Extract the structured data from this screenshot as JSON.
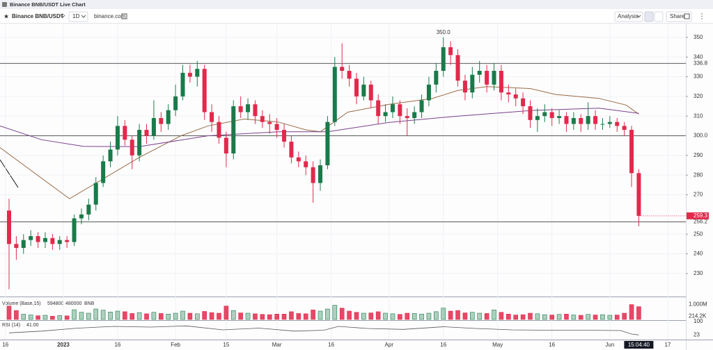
{
  "window_title": "Binance BNB/USDT Live Chart",
  "toolbar": {
    "symbol": "Binance BNB/USDT",
    "interval": "1D",
    "source": "binance.com",
    "analysis": "Analysis",
    "share": "Share"
  },
  "chart_data": {
    "type": "candlestick",
    "x": [
      1,
      3,
      5,
      7,
      9,
      11,
      13,
      15,
      17,
      19,
      21,
      23,
      25,
      27,
      29,
      31,
      33,
      35,
      37,
      39,
      41,
      43,
      45,
      47,
      49,
      51,
      53,
      55,
      57,
      59,
      61,
      63,
      65,
      67,
      69,
      71,
      73,
      75,
      77,
      79,
      81,
      83,
      85,
      87,
      89,
      91,
      93,
      95,
      97,
      99,
      101,
      103,
      105,
      107,
      109,
      111,
      113,
      115,
      117,
      119,
      121,
      123,
      125,
      127,
      129,
      131,
      133,
      135,
      137,
      139,
      141,
      143,
      145,
      147,
      149,
      151,
      153,
      155,
      157,
      159,
      161,
      163,
      165,
      167,
      169,
      171,
      173,
      175
    ],
    "open": [
      262,
      245,
      243,
      247,
      249,
      246,
      248,
      245,
      247,
      246,
      258,
      260,
      265,
      276,
      287,
      293,
      305,
      298,
      290,
      303,
      300,
      309,
      306,
      313,
      320,
      332,
      330,
      334,
      312,
      307,
      299,
      291,
      315,
      312,
      316,
      310,
      307,
      306,
      303,
      297,
      289,
      287,
      284,
      276,
      285,
      307,
      335,
      333,
      329,
      320,
      326,
      318,
      310,
      312,
      316,
      310,
      309,
      312,
      318,
      326,
      333,
      345,
      341,
      328,
      322,
      331,
      333,
      326,
      333,
      322,
      321,
      319,
      315,
      308,
      310,
      312,
      309,
      310,
      306,
      309,
      306,
      310,
      306,
      306,
      307,
      305,
      303,
      281
    ],
    "high": [
      268,
      249,
      250,
      252,
      251,
      251,
      250,
      249,
      249,
      260,
      263,
      268,
      279,
      290,
      297,
      310,
      308,
      300,
      306,
      306,
      318,
      312,
      316,
      326,
      336,
      336,
      338,
      336,
      316,
      310,
      302,
      318,
      320,
      319,
      318,
      313,
      311,
      309,
      306,
      300,
      292,
      290,
      287,
      288,
      310,
      340,
      347,
      336,
      332,
      330,
      328,
      321,
      316,
      320,
      318,
      314,
      315,
      321,
      330,
      337,
      350,
      348,
      344,
      331,
      335,
      338,
      336,
      337,
      336,
      326,
      324,
      322,
      318,
      314,
      316,
      314,
      313,
      312,
      312,
      311,
      317,
      313,
      309,
      310,
      309,
      307,
      305,
      283
    ],
    "low": [
      222,
      237,
      240,
      244,
      243,
      243,
      242,
      242,
      243,
      244,
      255,
      257,
      262,
      274,
      284,
      290,
      295,
      283,
      287,
      296,
      298,
      302,
      303,
      310,
      318,
      327,
      325,
      308,
      302,
      296,
      284,
      288,
      309,
      308,
      306,
      304,
      301,
      299,
      294,
      286,
      284,
      280,
      266,
      272,
      283,
      305,
      329,
      325,
      316,
      318,
      314,
      306,
      307,
      309,
      306,
      300,
      306,
      309,
      315,
      322,
      330,
      336,
      325,
      318,
      319,
      327,
      322,
      323,
      318,
      317,
      315,
      311,
      304,
      302,
      307,
      305,
      306,
      302,
      303,
      302,
      303,
      303,
      303,
      304,
      302,
      300,
      274,
      254
    ],
    "close": [
      245,
      243,
      247,
      249,
      246,
      248,
      245,
      247,
      246,
      258,
      260,
      265,
      276,
      287,
      293,
      305,
      298,
      290,
      303,
      300,
      309,
      306,
      313,
      320,
      332,
      330,
      334,
      312,
      307,
      299,
      291,
      315,
      312,
      316,
      310,
      307,
      306,
      303,
      297,
      289,
      287,
      284,
      276,
      285,
      307,
      335,
      333,
      329,
      320,
      326,
      318,
      310,
      312,
      316,
      310,
      309,
      312,
      318,
      326,
      333,
      345,
      341,
      328,
      322,
      331,
      333,
      326,
      333,
      322,
      321,
      319,
      315,
      308,
      310,
      312,
      309,
      310,
      306,
      309,
      306,
      310,
      306,
      306,
      307,
      305,
      303,
      281,
      259.3
    ],
    "colors": {
      "up": "#1b7a4a",
      "down": "#e2294c"
    },
    "xlim": [
      -1.5,
      188
    ],
    "xticks": [
      {
        "value": 0,
        "label": "16"
      },
      {
        "value": 16,
        "label": "2023"
      },
      {
        "value": 31,
        "label": "16"
      },
      {
        "value": 47,
        "label": "Feb"
      },
      {
        "value": 61,
        "label": "15"
      },
      {
        "value": 75,
        "label": "Mar"
      },
      {
        "value": 90,
        "label": "16"
      },
      {
        "value": 106,
        "label": "Apr"
      },
      {
        "value": 121,
        "label": "16"
      },
      {
        "value": 136,
        "label": "May"
      },
      {
        "value": 151,
        "label": "16"
      },
      {
        "value": 167,
        "label": "Jun"
      },
      {
        "value": 183,
        "label": "17"
      }
    ],
    "ylim": [
      219,
      357
    ],
    "yticks": [
      230,
      240,
      250,
      270,
      280,
      290,
      310,
      320,
      330,
      340,
      350
    ],
    "hlines": [
      336.8,
      {
        "value": 300,
        "label": "300.0"
      },
      256.2
    ],
    "max_label": {
      "value": 350,
      "label": "350.0"
    },
    "last_price": 259.3,
    "time_label": "15:04:40",
    "ma": [
      {
        "color": "#9a6a45",
        "x": [
          -1.5,
          17.7,
          37,
          48.5,
          56,
          66,
          75.4,
          83,
          87,
          94.6,
          106,
          118,
          125,
          133,
          145,
          152,
          164,
          171.5,
          175
        ],
        "values": [
          294,
          268,
          289,
          300,
          305,
          308.5,
          307,
          303,
          302,
          312,
          316,
          319,
          323,
          325,
          324,
          321,
          319,
          315.6,
          311
        ]
      },
      {
        "color": "#7a3f8a",
        "x": [
          -1.5,
          10,
          21.5,
          37,
          56,
          75.4,
          89,
          106,
          125,
          145,
          164,
          175
        ],
        "values": [
          305,
          298,
          294.6,
          294.5,
          300,
          302,
          302,
          306.8,
          310,
          312.8,
          314,
          311.4
        ]
      }
    ],
    "volume": {
      "label": "Volume (Base,15)",
      "readout": [
        594800,
        480000
      ],
      "unit": "BNB",
      "values": [
        900000,
        600000,
        350000,
        300000,
        250000,
        280000,
        220000,
        260000,
        240000,
        650000,
        480000,
        420000,
        700000,
        620000,
        500000,
        560000,
        520000,
        400000,
        460000,
        380000,
        480000,
        400000,
        360000,
        420000,
        560000,
        420000,
        380000,
        540000,
        460000,
        420000,
        900000,
        600000,
        440000,
        420000,
        380000,
        340000,
        320000,
        360000,
        360000,
        520000,
        400000,
        380000,
        640000,
        560000,
        700000,
        950000,
        760000,
        560000,
        480000,
        420000,
        440000,
        520000,
        420000,
        380000,
        340000,
        420000,
        400000,
        360000,
        420000,
        520000,
        760000,
        560000,
        600000,
        440000,
        480000,
        420000,
        400000,
        640000,
        480000,
        360000,
        300000,
        320000,
        420000,
        380000,
        320000,
        300000,
        340000,
        360000,
        300000,
        280000,
        340000,
        300000,
        320000,
        280000,
        300000,
        420000,
        1000000,
        860000
      ],
      "ylim": [
        0,
        1400000
      ],
      "yticks": [
        {
          "value": 1000000,
          "label": "1.000M"
        },
        {
          "value": 214200,
          "label": "214.2K"
        }
      ]
    },
    "rsi": {
      "label": "RSI (14)",
      "readout": {
        "value": 41,
        "label": "41.00"
      },
      "color": "#555555",
      "x": [
        1,
        10,
        20,
        30,
        40,
        50,
        60,
        70,
        80,
        88,
        92,
        100,
        110,
        121,
        130,
        140,
        150,
        160,
        170,
        173,
        175
      ],
      "values": [
        35,
        45,
        62,
        72,
        68,
        75,
        52,
        62,
        45,
        50,
        72,
        60,
        55,
        70,
        60,
        52,
        50,
        50,
        48,
        28,
        23
      ],
      "ylim": [
        0,
        100
      ],
      "yticks": [
        100,
        23
      ]
    }
  }
}
